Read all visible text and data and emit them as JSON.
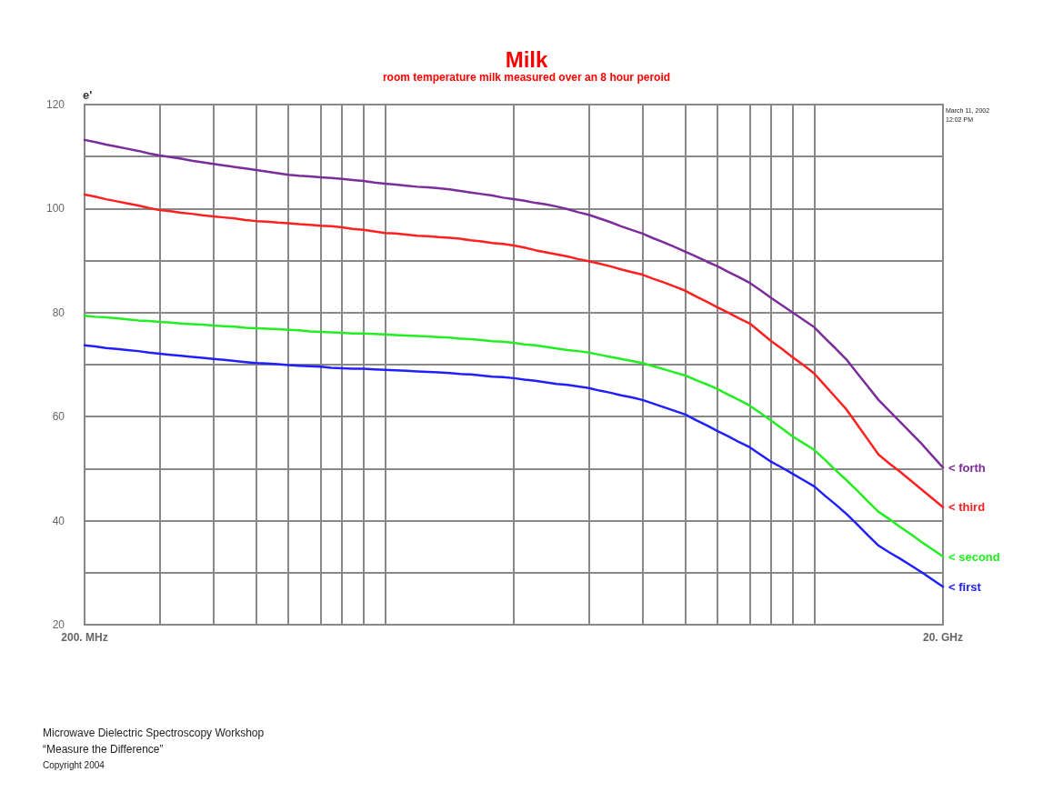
{
  "chart_data": {
    "type": "line",
    "title": "Milk",
    "subtitle": "room temperature milk measured over an 8 hour peroid",
    "ylabel": "e'",
    "annotations": [
      "Microwave Dielectric Spectroscopy Workshop “Measure the Difference”",
      "Copyright 2004",
      "March 11, 2002 12:02 PM"
    ],
    "grid": true,
    "legend": false,
    "marker": "none",
    "line_style": "solid",
    "categories": [
      "200. MHz",
      null,
      null,
      null,
      null,
      null,
      null,
      null,
      null,
      null,
      null,
      null,
      null,
      null,
      null,
      null,
      null,
      null,
      null,
      null,
      null,
      null,
      null,
      null,
      null,
      null,
      null,
      null,
      null,
      null,
      null,
      null,
      null,
      null,
      null,
      null,
      null,
      null,
      null,
      null,
      null,
      null,
      null,
      null,
      null,
      null,
      null,
      null,
      null,
      null,
      null,
      null,
      null,
      null,
      null,
      null,
      null,
      null,
      null,
      null,
      null,
      null,
      null,
      null,
      null,
      null,
      null,
      null,
      null,
      null,
      null,
      null,
      null,
      null,
      null,
      null,
      null,
      null,
      null,
      null,
      "20. GHz"
    ],
    "ylim": [
      20,
      120
    ],
    "yticks": [
      20,
      {
        "value": 30,
        "label": null
      },
      40,
      {
        "value": 50,
        "label": null
      },
      60,
      {
        "value": 70,
        "label": null
      },
      80,
      {
        "value": 90,
        "label": null
      },
      100,
      {
        "value": 110,
        "label": null
      },
      120
    ],
    "series": [
      {
        "name": "< forth",
        "color": "#7b2d9b",
        "values": [
          113.2,
          112.8,
          112.3,
          111.9,
          111.5,
          111.1,
          110.6,
          110.2,
          109.9,
          109.6,
          109.2,
          108.9,
          108.6,
          108.3,
          108.0,
          107.7,
          107.4,
          107.1,
          106.8,
          106.5,
          106.3,
          106.2,
          106.0,
          105.9,
          105.7,
          105.5,
          105.3,
          105.0,
          104.8,
          104.6,
          104.4,
          104.2,
          104.1,
          103.9,
          103.7,
          103.4,
          103.1,
          102.8,
          102.5,
          102.1,
          101.8,
          101.5,
          101.1,
          100.8,
          100.4,
          99.9,
          99.3,
          98.8,
          98.1,
          97.4,
          96.6,
          95.9,
          95.2,
          94.3,
          93.5,
          92.6,
          91.7,
          90.8,
          89.8,
          88.9,
          87.8,
          86.8,
          85.7,
          84.3,
          82.8,
          81.4,
          80.0,
          78.6,
          77.2,
          75.1,
          73.1,
          71.0,
          68.4,
          65.8,
          63.2,
          61.1,
          59.0,
          56.9,
          54.8,
          52.5,
          50.2
        ]
      },
      {
        "name": "< third",
        "color": "#ff2020",
        "values": [
          102.7,
          102.3,
          101.8,
          101.4,
          101.0,
          100.6,
          100.1,
          99.7,
          99.5,
          99.2,
          99.0,
          98.7,
          98.5,
          98.3,
          98.1,
          97.8,
          97.6,
          97.5,
          97.3,
          97.2,
          97.0,
          96.9,
          96.7,
          96.6,
          96.4,
          96.1,
          95.9,
          95.6,
          95.3,
          95.2,
          95.0,
          94.8,
          94.7,
          94.5,
          94.4,
          94.2,
          93.9,
          93.7,
          93.4,
          93.2,
          92.9,
          92.5,
          92.0,
          91.6,
          91.2,
          90.8,
          90.3,
          89.9,
          89.4,
          88.9,
          88.3,
          87.8,
          87.3,
          86.5,
          85.8,
          85.0,
          84.2,
          83.1,
          82.1,
          81.0,
          80.0,
          78.9,
          77.9,
          76.2,
          74.5,
          73.0,
          71.4,
          69.9,
          68.3,
          66.0,
          63.7,
          61.4,
          58.5,
          55.6,
          52.7,
          51.0,
          49.4,
          47.7,
          46.0,
          44.3,
          42.6
        ]
      },
      {
        "name": "< second",
        "color": "#22ee22",
        "values": [
          79.4,
          79.2,
          79.1,
          78.9,
          78.7,
          78.5,
          78.4,
          78.2,
          78.1,
          77.9,
          77.8,
          77.7,
          77.5,
          77.4,
          77.3,
          77.1,
          77.0,
          76.9,
          76.8,
          76.7,
          76.6,
          76.4,
          76.3,
          76.2,
          76.1,
          76.0,
          76.0,
          75.9,
          75.8,
          75.7,
          75.6,
          75.5,
          75.4,
          75.3,
          75.2,
          75.0,
          74.9,
          74.7,
          74.5,
          74.4,
          74.2,
          73.9,
          73.7,
          73.4,
          73.1,
          72.8,
          72.6,
          72.3,
          71.9,
          71.5,
          71.1,
          70.7,
          70.3,
          69.7,
          69.1,
          68.5,
          67.9,
          67.0,
          66.2,
          65.3,
          64.2,
          63.2,
          62.1,
          60.7,
          59.2,
          57.7,
          56.2,
          54.9,
          53.6,
          51.7,
          49.7,
          47.8,
          45.8,
          43.7,
          41.7,
          40.3,
          38.8,
          37.4,
          35.9,
          34.5,
          33.1
        ]
      },
      {
        "name": "< first",
        "color": "#2020ff",
        "values": [
          73.7,
          73.5,
          73.2,
          73.0,
          72.8,
          72.6,
          72.3,
          72.1,
          71.9,
          71.7,
          71.5,
          71.3,
          71.1,
          70.9,
          70.7,
          70.5,
          70.3,
          70.2,
          70.1,
          69.9,
          69.8,
          69.7,
          69.6,
          69.4,
          69.3,
          69.2,
          69.2,
          69.1,
          69.0,
          68.9,
          68.8,
          68.7,
          68.6,
          68.5,
          68.4,
          68.2,
          68.1,
          67.9,
          67.7,
          67.6,
          67.4,
          67.1,
          66.9,
          66.6,
          66.3,
          66.1,
          65.8,
          65.5,
          65.0,
          64.6,
          64.1,
          63.7,
          63.2,
          62.5,
          61.8,
          61.1,
          60.4,
          59.3,
          58.3,
          57.2,
          56.2,
          55.1,
          54.1,
          52.7,
          51.3,
          50.2,
          49.0,
          47.8,
          46.6,
          44.8,
          43.1,
          41.3,
          39.3,
          37.2,
          35.2,
          33.9,
          32.7,
          31.4,
          30.1,
          28.7,
          27.3
        ]
      }
    ]
  }
}
